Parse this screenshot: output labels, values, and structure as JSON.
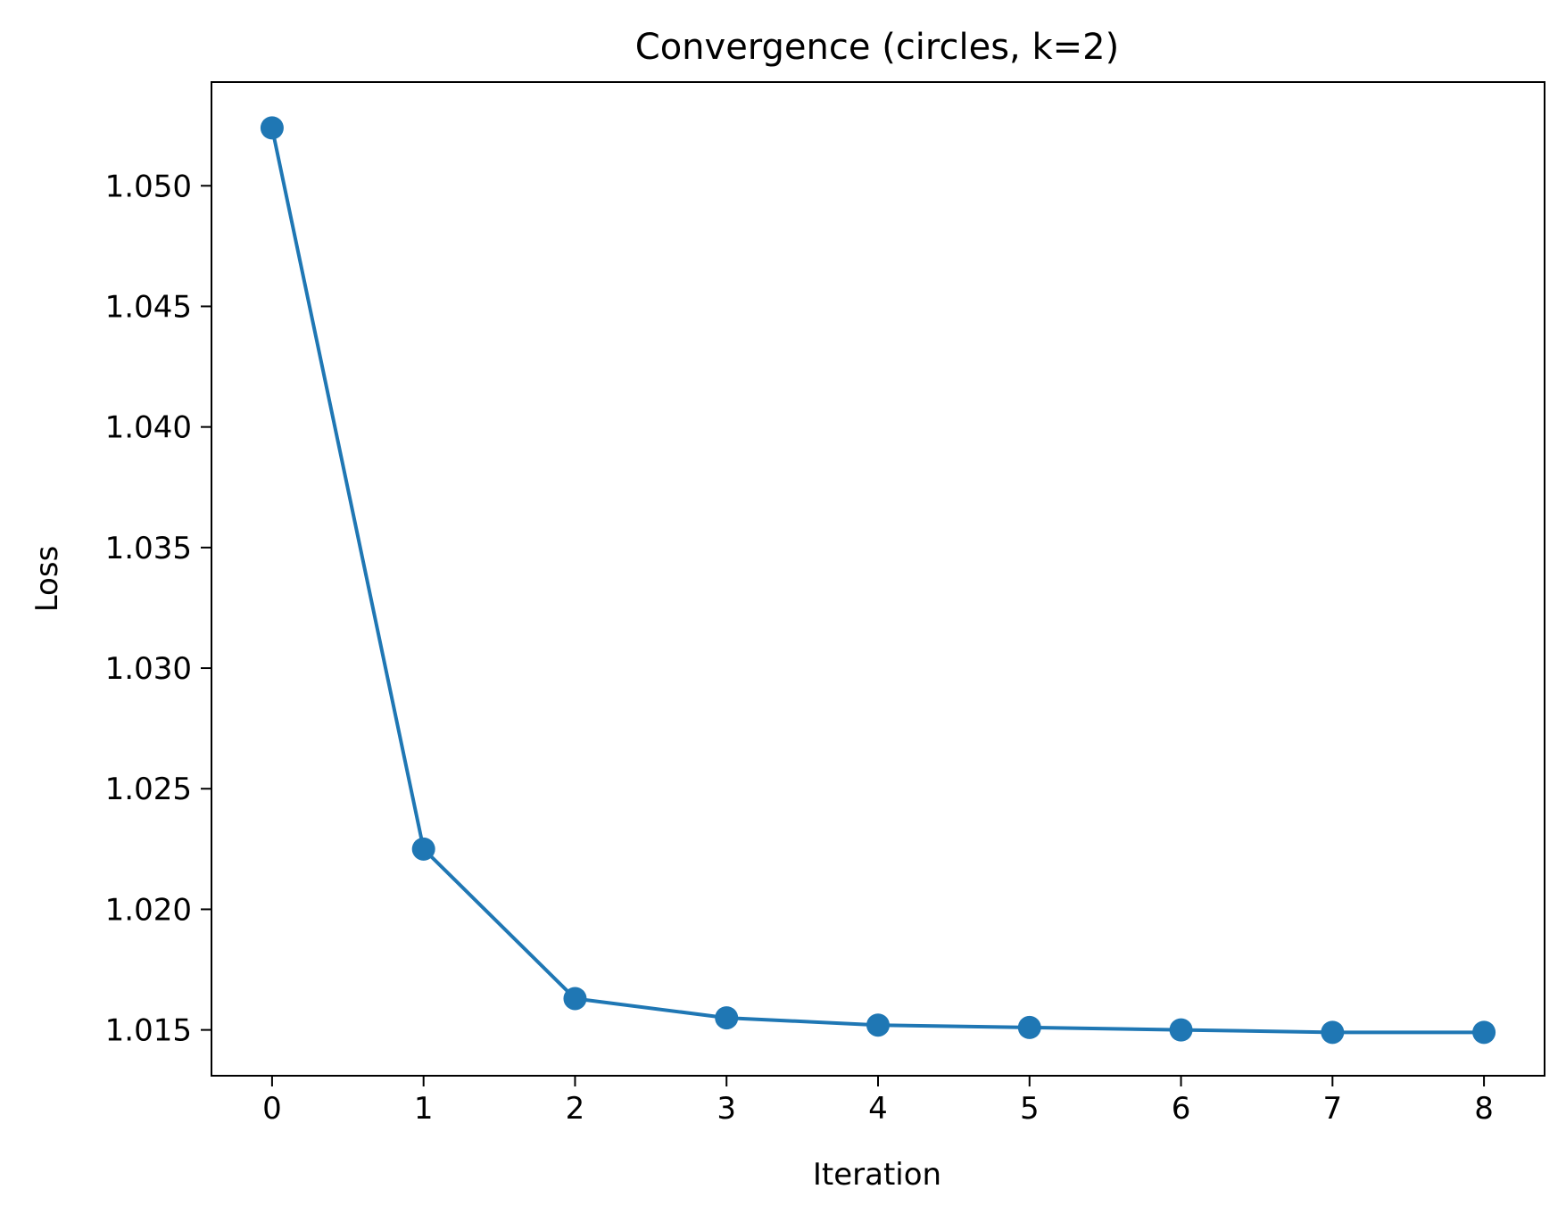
{
  "chart_data": {
    "type": "line",
    "title": "Convergence (circles, k=2)",
    "xlabel": "Iteration",
    "ylabel": "Loss",
    "x": [
      0,
      1,
      2,
      3,
      4,
      5,
      6,
      7,
      8
    ],
    "xticks": [
      "0",
      "1",
      "2",
      "3",
      "4",
      "5",
      "6",
      "7",
      "8"
    ],
    "yticks": [
      "1.015",
      "1.020",
      "1.025",
      "1.030",
      "1.035",
      "1.040",
      "1.045",
      "1.050"
    ],
    "ytick_values": [
      1.015,
      1.02,
      1.025,
      1.03,
      1.035,
      1.04,
      1.045,
      1.05
    ],
    "xlim": [
      -0.4,
      8.4
    ],
    "ylim": [
      1.0131,
      1.0543
    ],
    "grid": false,
    "series": [
      {
        "values": [
          1.0524,
          1.0225,
          1.0163,
          1.0155,
          1.0152,
          1.0151,
          1.015,
          1.0149,
          1.0149
        ],
        "color": "#1f77b4",
        "marker": "circle"
      }
    ]
  }
}
